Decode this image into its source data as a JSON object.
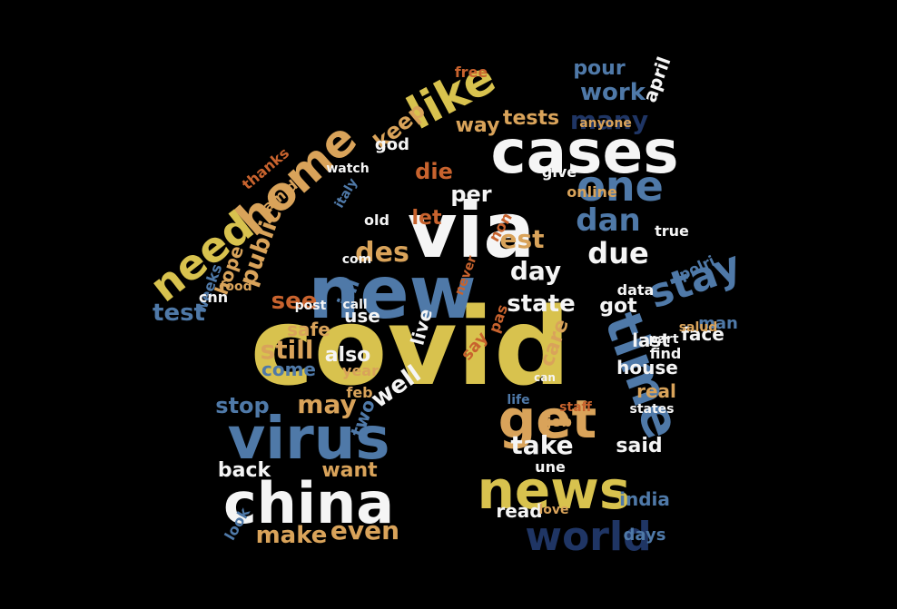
{
  "palette": {
    "background": "#000000",
    "gold": "#D8C24E",
    "white": "#F5F5F5",
    "blue": "#4F79A8",
    "navy": "#1F3564",
    "orange": "#C8632E",
    "tan": "#D9A35A"
  },
  "shape": "house",
  "words": [
    {
      "text": "covid",
      "color": "gold"
    },
    {
      "text": "via",
      "color": "white"
    },
    {
      "text": "new",
      "color": "blue"
    },
    {
      "text": "cases",
      "color": "white"
    },
    {
      "text": "china",
      "color": "white"
    },
    {
      "text": "virus",
      "color": "blue"
    },
    {
      "text": "news",
      "color": "gold"
    },
    {
      "text": "get",
      "color": "tan"
    },
    {
      "text": "time",
      "color": "blue"
    },
    {
      "text": "world",
      "color": "navy"
    },
    {
      "text": "home",
      "color": "tan"
    },
    {
      "text": "like",
      "color": "gold"
    },
    {
      "text": "one",
      "color": "blue"
    },
    {
      "text": "need",
      "color": "gold"
    },
    {
      "text": "stay",
      "color": "blue"
    },
    {
      "text": "dan",
      "color": "blue"
    },
    {
      "text": "due",
      "color": "white"
    },
    {
      "text": "des",
      "color": "tan"
    },
    {
      "text": "day",
      "color": "white"
    },
    {
      "text": "est",
      "color": "tan"
    },
    {
      "text": "many",
      "color": "navy"
    },
    {
      "text": "work",
      "color": "blue"
    },
    {
      "text": "keep",
      "color": "tan"
    },
    {
      "text": "pour",
      "color": "blue"
    },
    {
      "text": "april",
      "color": "white"
    },
    {
      "text": "way",
      "color": "tan"
    },
    {
      "text": "tests",
      "color": "tan"
    },
    {
      "text": "per",
      "color": "white"
    },
    {
      "text": "die",
      "color": "orange"
    },
    {
      "text": "let",
      "color": "orange"
    },
    {
      "text": "public",
      "color": "tan"
    },
    {
      "text": "test",
      "color": "blue"
    },
    {
      "text": "see",
      "color": "orange"
    },
    {
      "text": "ini",
      "color": "blue"
    },
    {
      "text": "still",
      "color": "tan"
    },
    {
      "text": "also",
      "color": "white"
    },
    {
      "text": "live",
      "color": "white"
    },
    {
      "text": "state",
      "color": "white"
    },
    {
      "text": "care",
      "color": "tan"
    },
    {
      "text": "got",
      "color": "white"
    },
    {
      "text": "face",
      "color": "white"
    },
    {
      "text": "man",
      "color": "blue"
    },
    {
      "text": "may",
      "color": "tan"
    },
    {
      "text": "well",
      "color": "white"
    },
    {
      "text": "take",
      "color": "white"
    },
    {
      "text": "said",
      "color": "white"
    },
    {
      "text": "back",
      "color": "white"
    },
    {
      "text": "want",
      "color": "tan"
    },
    {
      "text": "make",
      "color": "tan"
    },
    {
      "text": "even",
      "color": "tan"
    },
    {
      "text": "read",
      "color": "white"
    },
    {
      "text": "india",
      "color": "blue"
    },
    {
      "text": "days",
      "color": "blue"
    },
    {
      "text": "house",
      "color": "white"
    },
    {
      "text": "real",
      "color": "tan"
    },
    {
      "text": "last",
      "color": "white"
    },
    {
      "text": "true",
      "color": "white"
    },
    {
      "text": "hope",
      "color": "tan"
    },
    {
      "text": "weeks",
      "color": "blue"
    },
    {
      "text": "stop",
      "color": "blue"
    },
    {
      "text": "come",
      "color": "blue"
    },
    {
      "text": "two",
      "color": "blue"
    },
    {
      "text": "year",
      "color": "tan"
    },
    {
      "text": "look",
      "color": "blue"
    },
    {
      "text": "safe",
      "color": "tan"
    },
    {
      "text": "use",
      "color": "white"
    },
    {
      "text": "say",
      "color": "orange"
    },
    {
      "text": "amid",
      "color": "tan"
    },
    {
      "text": "thanks",
      "color": "orange"
    },
    {
      "text": "god",
      "color": "white"
    },
    {
      "text": "free",
      "color": "orange"
    },
    {
      "text": "cnn",
      "color": "white"
    },
    {
      "text": "polri",
      "color": "blue"
    },
    {
      "text": "job",
      "color": "tan"
    },
    {
      "text": "data",
      "color": "white"
    },
    {
      "text": "give",
      "color": "white"
    },
    {
      "text": "online",
      "color": "tan"
    },
    {
      "text": "anyone",
      "color": "tan"
    },
    {
      "text": "watch",
      "color": "white"
    },
    {
      "text": "italy",
      "color": "blue"
    },
    {
      "text": "feb",
      "color": "tan"
    },
    {
      "text": "life",
      "color": "blue"
    },
    {
      "text": "une",
      "color": "white"
    },
    {
      "text": "old",
      "color": "white"
    },
    {
      "text": "non",
      "color": "orange"
    },
    {
      "text": "pas",
      "color": "orange"
    },
    {
      "text": "salud",
      "color": "tan"
    },
    {
      "text": "find",
      "color": "white"
    },
    {
      "text": "states",
      "color": "white"
    },
    {
      "text": "love",
      "color": "tan"
    },
    {
      "text": "staff",
      "color": "orange"
    },
    {
      "text": "part",
      "color": "white"
    },
    {
      "text": "food",
      "color": "tan"
    },
    {
      "text": "post",
      "color": "white"
    },
    {
      "text": "com",
      "color": "white"
    },
    {
      "text": "call",
      "color": "white"
    },
    {
      "text": "never",
      "color": "orange"
    },
    {
      "text": "can",
      "color": "white"
    }
  ]
}
